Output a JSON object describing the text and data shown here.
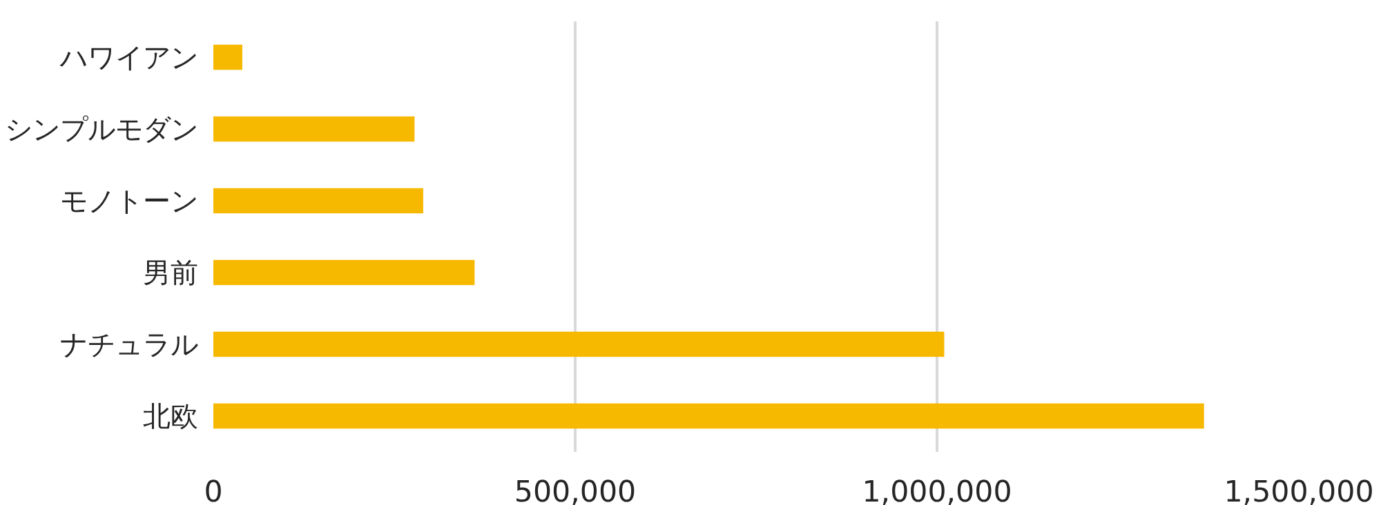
{
  "chart_data": {
    "type": "bar",
    "orientation": "horizontal",
    "categories": [
      "ハワイアン",
      "シンプルモダン",
      "モノトーン",
      "男前",
      "ナチュラル",
      "北欧"
    ],
    "values": [
      40000,
      278000,
      290000,
      361000,
      1010000,
      1369000
    ],
    "color": "#f7b800",
    "xlim": [
      0,
      1500000
    ],
    "xticks": [
      0,
      {
        "value": 500000,
        "label": "500,000"
      },
      {
        "value": 1000000,
        "label": "1,000,000"
      },
      {
        "value": 1500000,
        "label": "1,500,000"
      }
    ],
    "grid": "x"
  }
}
